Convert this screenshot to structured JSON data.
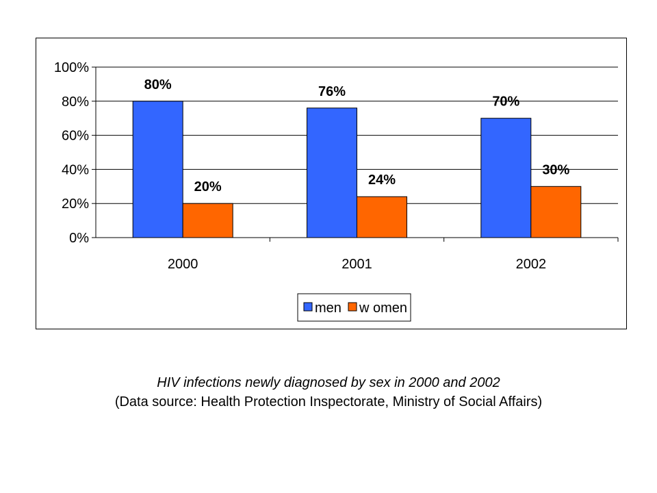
{
  "chart_data": {
    "type": "bar",
    "categories": [
      "2000",
      "2001",
      "2002"
    ],
    "series": [
      {
        "name": "men",
        "values": [
          80,
          76,
          70
        ],
        "labels": [
          "80%",
          "76%",
          "70%"
        ],
        "color": "#3366FF"
      },
      {
        "name": "w omen",
        "values": [
          20,
          24,
          30
        ],
        "labels": [
          "20%",
          "24%",
          "30%"
        ],
        "color": "#FF6600"
      }
    ],
    "ylim": [
      0,
      100
    ],
    "yticks": [
      "0%",
      "20%",
      "40%",
      "60%",
      "80%",
      "100%"
    ],
    "grid": true,
    "legend": "bottom-center"
  },
  "caption": {
    "title": "HIV infections newly diagnosed by sex in 2000 and 2002",
    "source": "(Data source: Health Protection Inspectorate, Ministry of Social Affairs)"
  }
}
